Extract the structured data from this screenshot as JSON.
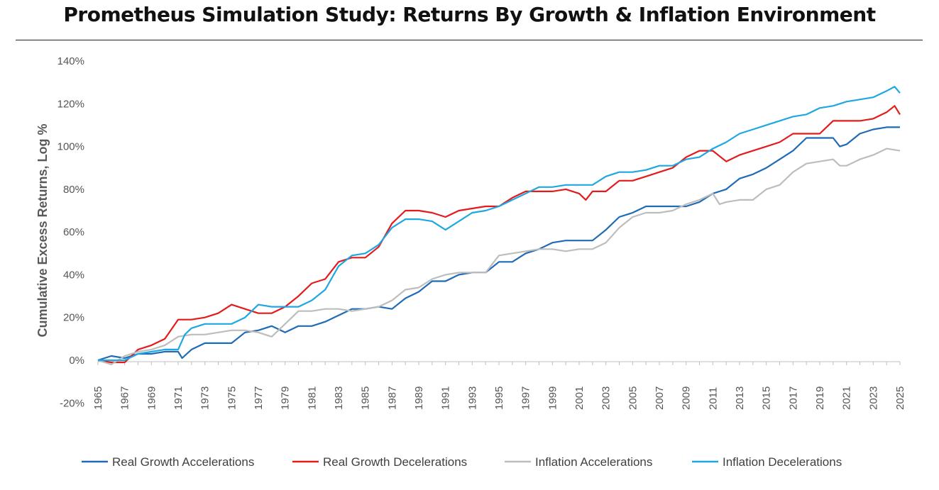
{
  "chart_data": {
    "type": "line",
    "title": "Prometheus Simulation Study: Returns By Growth & Inflation Environment",
    "ylabel": "Cumulative Excess Returns, Log %",
    "xlabel": "",
    "xlim": [
      1965,
      2025
    ],
    "ylim": [
      -20,
      140
    ],
    "y_ticks": [
      -20,
      0,
      20,
      40,
      60,
      80,
      100,
      120,
      140
    ],
    "y_tick_labels": [
      "-20%",
      "0%",
      "20%",
      "40%",
      "60%",
      "80%",
      "100%",
      "120%",
      "140%"
    ],
    "x_tick_labels": [
      "1965",
      "1967",
      "1969",
      "1971",
      "1973",
      "1975",
      "1977",
      "1979",
      "1981",
      "1983",
      "1985",
      "1987",
      "1989",
      "1991",
      "1993",
      "1995",
      "1997",
      "1999",
      "2001",
      "2003",
      "2005",
      "2007",
      "2009",
      "2011",
      "2013",
      "2015",
      "2017",
      "2019",
      "2021",
      "2023",
      "2025"
    ],
    "grid": false,
    "legend_position": "bottom",
    "series": [
      {
        "name": "Real Growth Accelerations",
        "color": "#1f6bb5",
        "points": [
          [
            1965,
            0
          ],
          [
            1966,
            2
          ],
          [
            1967,
            1
          ],
          [
            1968,
            3
          ],
          [
            1969,
            3
          ],
          [
            1970,
            4
          ],
          [
            1971,
            4
          ],
          [
            1971.3,
            1
          ],
          [
            1972,
            5
          ],
          [
            1973,
            8
          ],
          [
            1974,
            8
          ],
          [
            1975,
            8
          ],
          [
            1976,
            13
          ],
          [
            1977,
            14
          ],
          [
            1978,
            16
          ],
          [
            1979,
            13
          ],
          [
            1980,
            16
          ],
          [
            1981,
            16
          ],
          [
            1982,
            18
          ],
          [
            1983,
            21
          ],
          [
            1984,
            24
          ],
          [
            1985,
            24
          ],
          [
            1986,
            25
          ],
          [
            1987,
            24
          ],
          [
            1988,
            29
          ],
          [
            1989,
            32
          ],
          [
            1990,
            37
          ],
          [
            1991,
            37
          ],
          [
            1992,
            40
          ],
          [
            1993,
            41
          ],
          [
            1994,
            41
          ],
          [
            1995,
            46
          ],
          [
            1996,
            46
          ],
          [
            1997,
            50
          ],
          [
            1998,
            52
          ],
          [
            1999,
            55
          ],
          [
            2000,
            56
          ],
          [
            2001,
            56
          ],
          [
            2002,
            56
          ],
          [
            2003,
            61
          ],
          [
            2004,
            67
          ],
          [
            2005,
            69
          ],
          [
            2006,
            72
          ],
          [
            2007,
            72
          ],
          [
            2008,
            72
          ],
          [
            2009,
            72
          ],
          [
            2010,
            74
          ],
          [
            2011,
            78
          ],
          [
            2012,
            80
          ],
          [
            2013,
            85
          ],
          [
            2014,
            87
          ],
          [
            2015,
            90
          ],
          [
            2016,
            94
          ],
          [
            2017,
            98
          ],
          [
            2018,
            104
          ],
          [
            2019,
            104
          ],
          [
            2020,
            104
          ],
          [
            2020.5,
            100
          ],
          [
            2021,
            101
          ],
          [
            2022,
            106
          ],
          [
            2023,
            108
          ],
          [
            2024,
            109
          ],
          [
            2025,
            109
          ]
        ]
      },
      {
        "name": "Real Growth Decelerations",
        "color": "#e31b1b",
        "points": [
          [
            1965,
            0
          ],
          [
            1966,
            -1
          ],
          [
            1967,
            -1
          ],
          [
            1968,
            5
          ],
          [
            1969,
            7
          ],
          [
            1970,
            10
          ],
          [
            1971,
            19
          ],
          [
            1972,
            19
          ],
          [
            1973,
            20
          ],
          [
            1974,
            22
          ],
          [
            1975,
            26
          ],
          [
            1976,
            24
          ],
          [
            1977,
            22
          ],
          [
            1978,
            22
          ],
          [
            1979,
            25
          ],
          [
            1980,
            30
          ],
          [
            1981,
            36
          ],
          [
            1982,
            38
          ],
          [
            1983,
            46
          ],
          [
            1984,
            48
          ],
          [
            1985,
            48
          ],
          [
            1986,
            53
          ],
          [
            1987,
            64
          ],
          [
            1988,
            70
          ],
          [
            1989,
            70
          ],
          [
            1990,
            69
          ],
          [
            1991,
            67
          ],
          [
            1992,
            70
          ],
          [
            1993,
            71
          ],
          [
            1994,
            72
          ],
          [
            1995,
            72
          ],
          [
            1996,
            76
          ],
          [
            1997,
            79
          ],
          [
            1998,
            79
          ],
          [
            1999,
            79
          ],
          [
            2000,
            80
          ],
          [
            2001,
            78
          ],
          [
            2001.5,
            75
          ],
          [
            2002,
            79
          ],
          [
            2003,
            79
          ],
          [
            2004,
            84
          ],
          [
            2005,
            84
          ],
          [
            2006,
            86
          ],
          [
            2007,
            88
          ],
          [
            2008,
            90
          ],
          [
            2009,
            95
          ],
          [
            2010,
            98
          ],
          [
            2011,
            98
          ],
          [
            2012,
            93
          ],
          [
            2013,
            96
          ],
          [
            2014,
            98
          ],
          [
            2015,
            100
          ],
          [
            2016,
            102
          ],
          [
            2017,
            106
          ],
          [
            2018,
            106
          ],
          [
            2019,
            106
          ],
          [
            2020,
            112
          ],
          [
            2021,
            112
          ],
          [
            2022,
            112
          ],
          [
            2023,
            113
          ],
          [
            2024,
            116
          ],
          [
            2024.6,
            119
          ],
          [
            2025,
            115
          ]
        ]
      },
      {
        "name": "Inflation Accelerations",
        "color": "#bdbdbd",
        "points": [
          [
            1965,
            0
          ],
          [
            1966,
            -2
          ],
          [
            1967,
            2
          ],
          [
            1968,
            4
          ],
          [
            1969,
            5
          ],
          [
            1970,
            7
          ],
          [
            1971,
            11
          ],
          [
            1972,
            12
          ],
          [
            1973,
            12
          ],
          [
            1974,
            13
          ],
          [
            1975,
            14
          ],
          [
            1976,
            14
          ],
          [
            1977,
            13
          ],
          [
            1978,
            11
          ],
          [
            1979,
            17
          ],
          [
            1980,
            23
          ],
          [
            1981,
            23
          ],
          [
            1982,
            24
          ],
          [
            1983,
            24
          ],
          [
            1984,
            23
          ],
          [
            1985,
            24
          ],
          [
            1986,
            25
          ],
          [
            1987,
            28
          ],
          [
            1988,
            33
          ],
          [
            1989,
            34
          ],
          [
            1990,
            38
          ],
          [
            1991,
            40
          ],
          [
            1992,
            41
          ],
          [
            1993,
            41
          ],
          [
            1994,
            41
          ],
          [
            1995,
            49
          ],
          [
            1996,
            50
          ],
          [
            1997,
            51
          ],
          [
            1998,
            52
          ],
          [
            1999,
            52
          ],
          [
            2000,
            51
          ],
          [
            2001,
            52
          ],
          [
            2002,
            52
          ],
          [
            2003,
            55
          ],
          [
            2004,
            62
          ],
          [
            2005,
            67
          ],
          [
            2006,
            69
          ],
          [
            2007,
            69
          ],
          [
            2008,
            70
          ],
          [
            2009,
            73
          ],
          [
            2010,
            75
          ],
          [
            2011,
            78
          ],
          [
            2011.5,
            73
          ],
          [
            2012,
            74
          ],
          [
            2013,
            75
          ],
          [
            2014,
            75
          ],
          [
            2015,
            80
          ],
          [
            2016,
            82
          ],
          [
            2017,
            88
          ],
          [
            2018,
            92
          ],
          [
            2019,
            93
          ],
          [
            2020,
            94
          ],
          [
            2020.5,
            91
          ],
          [
            2021,
            91
          ],
          [
            2022,
            94
          ],
          [
            2023,
            96
          ],
          [
            2024,
            99
          ],
          [
            2025,
            98
          ]
        ]
      },
      {
        "name": "Inflation Decelerations",
        "color": "#1ea7e1",
        "points": [
          [
            1965,
            0
          ],
          [
            1966,
            0
          ],
          [
            1967,
            0
          ],
          [
            1968,
            3
          ],
          [
            1969,
            4
          ],
          [
            1970,
            5
          ],
          [
            1971,
            5
          ],
          [
            1971.5,
            12
          ],
          [
            1972,
            15
          ],
          [
            1973,
            17
          ],
          [
            1974,
            17
          ],
          [
            1975,
            17
          ],
          [
            1976,
            20
          ],
          [
            1977,
            26
          ],
          [
            1978,
            25
          ],
          [
            1979,
            25
          ],
          [
            1980,
            25
          ],
          [
            1981,
            28
          ],
          [
            1982,
            33
          ],
          [
            1983,
            44
          ],
          [
            1984,
            49
          ],
          [
            1985,
            50
          ],
          [
            1986,
            54
          ],
          [
            1987,
            62
          ],
          [
            1988,
            66
          ],
          [
            1989,
            66
          ],
          [
            1990,
            65
          ],
          [
            1991,
            61
          ],
          [
            1992,
            65
          ],
          [
            1993,
            69
          ],
          [
            1994,
            70
          ],
          [
            1995,
            72
          ],
          [
            1996,
            75
          ],
          [
            1997,
            78
          ],
          [
            1998,
            81
          ],
          [
            1999,
            81
          ],
          [
            2000,
            82
          ],
          [
            2001,
            82
          ],
          [
            2002,
            82
          ],
          [
            2003,
            86
          ],
          [
            2004,
            88
          ],
          [
            2005,
            88
          ],
          [
            2006,
            89
          ],
          [
            2007,
            91
          ],
          [
            2008,
            91
          ],
          [
            2009,
            94
          ],
          [
            2010,
            95
          ],
          [
            2011,
            99
          ],
          [
            2012,
            102
          ],
          [
            2013,
            106
          ],
          [
            2014,
            108
          ],
          [
            2015,
            110
          ],
          [
            2016,
            112
          ],
          [
            2017,
            114
          ],
          [
            2018,
            115
          ],
          [
            2019,
            118
          ],
          [
            2020,
            119
          ],
          [
            2021,
            121
          ],
          [
            2022,
            122
          ],
          [
            2023,
            123
          ],
          [
            2024,
            126
          ],
          [
            2024.6,
            128
          ],
          [
            2025,
            125
          ]
        ]
      }
    ]
  }
}
